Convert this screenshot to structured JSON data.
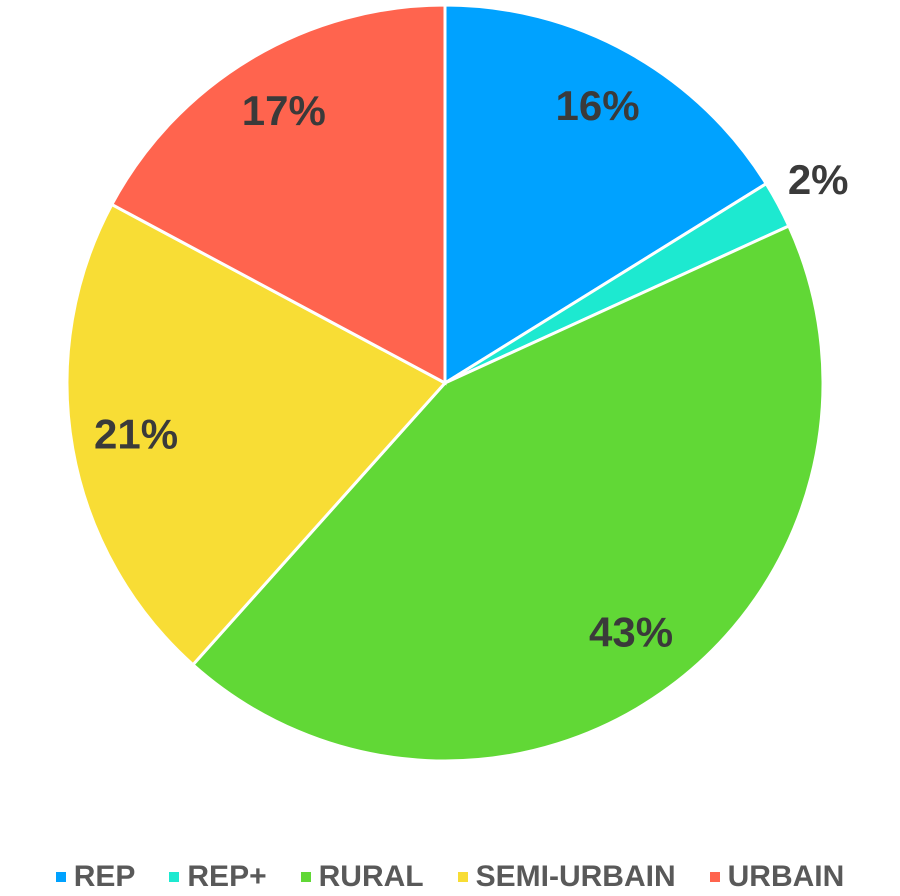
{
  "chart_data": {
    "type": "pie",
    "categories": [
      "REP",
      "REP+",
      "RURAL",
      "SEMI-URBAIN",
      "URBAIN"
    ],
    "values": [
      16,
      2,
      43,
      21,
      17
    ],
    "value_labels": [
      "16%",
      "2%",
      "43%",
      "21%",
      "17%"
    ],
    "colors": [
      "#00a2ff",
      "#1de9d0",
      "#61d836",
      "#f8dd35",
      "#ff644e"
    ],
    "legend": "bottom"
  }
}
